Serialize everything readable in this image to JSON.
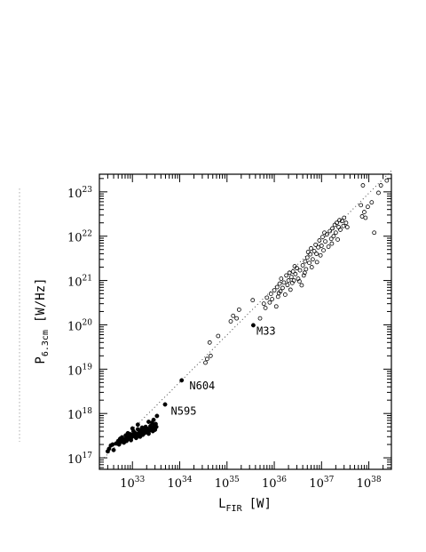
{
  "chart_data": {
    "type": "scatter",
    "title": "",
    "xlabel": {
      "main": "L",
      "sub": "FIR",
      "unit": "[W]"
    },
    "ylabel": {
      "main": "P",
      "sub": "6.3cm",
      "unit": "[W/Hz]"
    },
    "x_scale": "log",
    "y_scale": "log",
    "xlim": [
      2e+32,
      3e+38
    ],
    "ylim": [
      5.5e+16,
      2.5e+23
    ],
    "x_ticks": [
      {
        "base": "10",
        "exp": "33",
        "value": 1e+33
      },
      {
        "base": "10",
        "exp": "34",
        "value": 1e+34
      },
      {
        "base": "10",
        "exp": "35",
        "value": 1e+35
      },
      {
        "base": "10",
        "exp": "36",
        "value": 1e+36
      },
      {
        "base": "10",
        "exp": "37",
        "value": 1e+37
      },
      {
        "base": "10",
        "exp": "38",
        "value": 1e+38
      }
    ],
    "y_ticks": [
      {
        "base": "10",
        "exp": "17",
        "value": 1e+17
      },
      {
        "base": "10",
        "exp": "18",
        "value": 1e+18
      },
      {
        "base": "10",
        "exp": "19",
        "value": 1e+19
      },
      {
        "base": "10",
        "exp": "20",
        "value": 1e+20
      },
      {
        "base": "10",
        "exp": "21",
        "value": 1e+21
      },
      {
        "base": "10",
        "exp": "22",
        "value": 1e+22
      },
      {
        "base": "10",
        "exp": "23",
        "value": 1e+23
      }
    ],
    "fit_line": {
      "style": "dotted",
      "x": [
        2.5e+32,
        3e+38
      ],
      "y": [
        1e+17,
        3e+23
      ]
    },
    "series": [
      {
        "marker": "filled-circle",
        "points": [
          [
            3e+32,
            1.4e+17
          ],
          [
            3.2e+32,
            1.6e+17
          ],
          [
            3.5e+32,
            1.9e+17
          ],
          [
            3.8e+32,
            2e+17
          ],
          [
            4e+32,
            1.5e+17
          ],
          [
            4.5e+32,
            2.1e+17
          ],
          [
            5e+32,
            2.4e+17
          ],
          [
            5.2e+32,
            2e+17
          ],
          [
            5.5e+32,
            2.7e+17
          ],
          [
            5.8e+32,
            2.3e+17
          ],
          [
            6e+32,
            2.9e+17
          ],
          [
            6.3e+32,
            2.5e+17
          ],
          [
            6.6e+32,
            2.2e+17
          ],
          [
            7e+32,
            2.6e+17
          ],
          [
            7.2e+32,
            3.2e+17
          ],
          [
            7.5e+32,
            2.4e+17
          ],
          [
            7.8e+32,
            2.8e+17
          ],
          [
            8e+32,
            3.6e+17
          ],
          [
            8.3e+32,
            2.7e+17
          ],
          [
            8.6e+32,
            3e+17
          ],
          [
            9e+32,
            3.4e+17
          ],
          [
            9.3e+32,
            2.5e+17
          ],
          [
            9.6e+32,
            2.9e+17
          ],
          [
            1e+33,
            3.3e+17
          ],
          [
            1.05e+33,
            4e+17
          ],
          [
            1.1e+33,
            3.1e+17
          ],
          [
            1.15e+33,
            3.6e+17
          ],
          [
            1.2e+33,
            2.8e+17
          ],
          [
            1.25e+33,
            3.4e+17
          ],
          [
            1.3e+33,
            4.4e+17
          ],
          [
            1.35e+33,
            3.2e+17
          ],
          [
            1.4e+33,
            3.7e+17
          ],
          [
            1.45e+33,
            3e+17
          ],
          [
            1.5e+33,
            4.2e+17
          ],
          [
            1.55e+33,
            3.5e+17
          ],
          [
            1.6e+33,
            4.8e+17
          ],
          [
            1.65e+33,
            3.3e+17
          ],
          [
            1.7e+33,
            3.9e+17
          ],
          [
            1.8e+33,
            3.6e+17
          ],
          [
            1.85e+33,
            4.3e+17
          ],
          [
            1.9e+33,
            5e+17
          ],
          [
            2e+33,
            3.8e+17
          ],
          [
            2.1e+33,
            4.5e+17
          ],
          [
            2.2e+33,
            3.5e+17
          ],
          [
            2.3e+33,
            4.1e+17
          ],
          [
            2.4e+33,
            5.2e+17
          ],
          [
            2.5e+33,
            4.4e+17
          ],
          [
            2.6e+33,
            6.2e+17
          ],
          [
            2.7e+33,
            4e+17
          ],
          [
            2.8e+33,
            4.9e+17
          ],
          [
            2.9e+33,
            5.5e+17
          ],
          [
            3e+33,
            4.3e+17
          ],
          [
            3.1e+33,
            5.8e+17
          ],
          [
            1.3e+33,
            5.6e+17
          ],
          [
            1e+33,
            4.6e+17
          ],
          [
            2.8e+33,
            7.2e+17
          ],
          [
            2.2e+33,
            6.5e+17
          ],
          [
            3.2e+33,
            5e+17
          ],
          [
            3.3e+33,
            8.8e+17
          ],
          [
            4.9e+33,
            1.6e+18
          ],
          [
            1.1e+34,
            5.6e+18
          ],
          [
            3.6e+35,
            9.8e+19
          ]
        ]
      },
      {
        "marker": "open-circle",
        "points": [
          [
            3.5e+34,
            1.4e+19
          ],
          [
            3.8e+34,
            1.7e+19
          ],
          [
            4.3e+34,
            4e+19
          ],
          [
            4.5e+34,
            2e+19
          ],
          [
            6.5e+34,
            5.6e+19
          ],
          [
            1.2e+35,
            1.2e+20
          ],
          [
            1.35e+35,
            1.6e+20
          ],
          [
            1.6e+35,
            1.4e+20
          ],
          [
            1.8e+35,
            2.2e+20
          ],
          [
            3.5e+35,
            3.6e+20
          ],
          [
            5e+35,
            1.4e+20
          ],
          [
            6e+35,
            3e+20
          ],
          [
            6.5e+35,
            2.4e+20
          ],
          [
            7e+35,
            4.1e+20
          ],
          [
            8e+35,
            3.2e+20
          ],
          [
            8.5e+35,
            5e+20
          ],
          [
            9e+35,
            3.8e+20
          ],
          [
            1e+36,
            6e+20
          ],
          [
            1.1e+36,
            2.6e+20
          ],
          [
            1.15e+36,
            7.1e+20
          ],
          [
            1.2e+36,
            4.3e+20
          ],
          [
            1.3e+36,
            8.5e+20
          ],
          [
            1.35e+36,
            5.7e+20
          ],
          [
            1.4e+36,
            1.1e+21
          ],
          [
            1.5e+36,
            6.8e+20
          ],
          [
            1.6e+36,
            9e+20
          ],
          [
            1.7e+36,
            4.8e+20
          ],
          [
            1.8e+36,
            1.3e+21
          ],
          [
            1.9e+36,
            7.9e+20
          ],
          [
            2e+36,
            1e+21
          ],
          [
            2.1e+36,
            1.5e+21
          ],
          [
            2.2e+36,
            6.2e+20
          ],
          [
            2.3e+36,
            1.2e+21
          ],
          [
            2.4e+36,
            8.8e+20
          ],
          [
            2.5e+36,
            1.6e+21
          ],
          [
            2.6e+36,
            1e+21
          ],
          [
            2.8e+36,
            1.4e+21
          ],
          [
            3e+36,
            1.9e+21
          ],
          [
            3.2e+36,
            1.1e+21
          ],
          [
            3.5e+36,
            1.7e+21
          ],
          [
            3.8e+36,
            7.8e+20
          ],
          [
            4e+36,
            2.2e+21
          ],
          [
            4.2e+36,
            1.3e+21
          ],
          [
            4.5e+36,
            2.7e+21
          ],
          [
            4.7e+36,
            1.8e+21
          ],
          [
            5e+36,
            3.3e+21
          ],
          [
            5.2e+36,
            4.4e+21
          ],
          [
            5.5e+36,
            2.5e+21
          ],
          [
            5.8e+36,
            3.9e+21
          ],
          [
            6e+36,
            5.3e+21
          ],
          [
            6.5e+36,
            3e+21
          ],
          [
            7e+36,
            4.6e+21
          ],
          [
            7.5e+36,
            6.4e+21
          ],
          [
            8e+36,
            2.6e+21
          ],
          [
            8.5e+36,
            5.6e+21
          ],
          [
            9e+36,
            8e+21
          ],
          [
            9.5e+36,
            3.7e+21
          ],
          [
            1e+37,
            6.1e+21
          ],
          [
            1.05e+37,
            9.6e+21
          ],
          [
            1.1e+37,
            4.8e+21
          ],
          [
            1.2e+37,
            7.6e+21
          ],
          [
            1.3e+37,
            1.1e+22
          ],
          [
            1.4e+37,
            5.8e+21
          ],
          [
            1.5e+37,
            1.3e+22
          ],
          [
            1.6e+37,
            8.7e+21
          ],
          [
            1.7e+37,
            1.5e+22
          ],
          [
            1.8e+37,
            1e+22
          ],
          [
            1.9e+37,
            1.8e+22
          ],
          [
            2e+37,
            1.2e+22
          ],
          [
            2.1e+37,
            2e+22
          ],
          [
            2.2e+37,
            8.4e+21
          ],
          [
            2.3e+37,
            1.6e+22
          ],
          [
            2.4e+37,
            2.3e+22
          ],
          [
            2.5e+37,
            1.4e+22
          ],
          [
            2.7e+37,
            2.2e+22
          ],
          [
            2.9e+37,
            1.7e+22
          ],
          [
            3e+37,
            2.6e+22
          ],
          [
            3.3e+37,
            2e+22
          ],
          [
            3.5e+37,
            1.6e+22
          ],
          [
            1.25e+36,
            5.2e+20
          ],
          [
            2.7e+36,
            2.1e+21
          ],
          [
            3.4e+36,
            9.6e+20
          ],
          [
            4.4e+36,
            1.5e+21
          ],
          [
            6.2e+36,
            2e+21
          ],
          [
            7.8e+36,
            4e+21
          ],
          [
            1.15e+37,
            1.2e+22
          ],
          [
            1.65e+37,
            6.8e+21
          ],
          [
            6.8e+37,
            5e+22
          ],
          [
            7.2e+37,
            2.8e+22
          ],
          [
            8e+37,
            3.5e+22
          ],
          [
            8.5e+37,
            2.6e+22
          ],
          [
            7.5e+37,
            1.4e+23
          ],
          [
            9.5e+37,
            4.6e+22
          ],
          [
            1.15e+38,
            5.8e+22
          ],
          [
            1.3e+38,
            1.2e+22
          ],
          [
            1.6e+38,
            9.5e+22
          ],
          [
            1.8e+38,
            1.4e+23
          ],
          [
            2.4e+38,
            1.8e+23
          ]
        ]
      }
    ],
    "annotations": [
      {
        "text": "M33",
        "x": 4.2e+35,
        "y": 6e+19
      },
      {
        "text": "N604",
        "x": 1.6e+34,
        "y": 3.5e+18
      },
      {
        "text": "N595",
        "x": 6.5e+33,
        "y": 9.5e+17
      }
    ]
  }
}
